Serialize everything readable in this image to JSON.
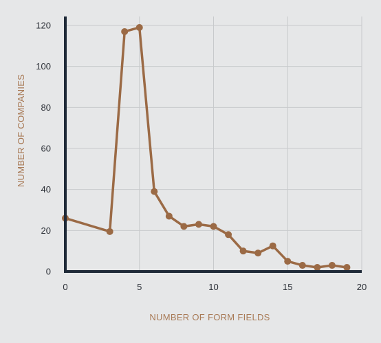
{
  "colors": {
    "background": "#e6e7e8",
    "grid": "#c8cacc",
    "axis": "#1f2a38",
    "series": "#9b6a45",
    "tick_text": "#2b2f36",
    "axis_label": "#a87a56"
  },
  "chart_data": {
    "type": "line",
    "title": "",
    "xlabel": "NUMBER OF FORM FIELDS",
    "ylabel": "NUMBER OF COMPANIES",
    "xlim": [
      0,
      20
    ],
    "ylim": [
      0,
      120
    ],
    "xticks": [
      0,
      5,
      10,
      15,
      20
    ],
    "yticks": [
      0,
      20,
      40,
      60,
      80,
      100,
      120
    ],
    "grid": true,
    "x": [
      0,
      3,
      4,
      5,
      6,
      7,
      8,
      9,
      10,
      11,
      12,
      13,
      14,
      15,
      16,
      17,
      18,
      19
    ],
    "series": [
      {
        "values": [
          26,
          19.5,
          117,
          119,
          39,
          27,
          22,
          23,
          22,
          18,
          10,
          9,
          12.5,
          5,
          3,
          2,
          3,
          2
        ]
      }
    ]
  }
}
